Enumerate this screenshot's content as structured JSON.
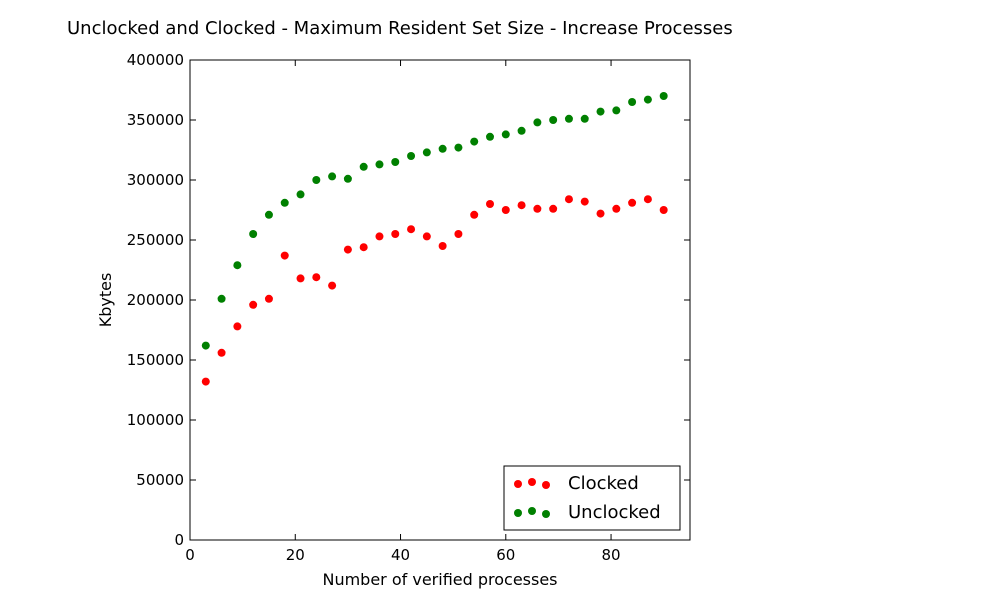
{
  "chart_data": {
    "type": "scatter",
    "title": "Unclocked and Clocked - Maximum Resident Set Size - Increase Processes",
    "xlabel": "Number of verified processes",
    "ylabel": "Kbytes",
    "xlim": [
      0,
      95
    ],
    "ylim": [
      0,
      400000
    ],
    "xticks": [
      0,
      20,
      40,
      60,
      80
    ],
    "yticks": [
      0,
      50000,
      100000,
      150000,
      200000,
      250000,
      300000,
      350000,
      400000
    ],
    "grid": false,
    "legend_position": "lower-right",
    "x": [
      3,
      6,
      9,
      12,
      15,
      18,
      21,
      24,
      27,
      30,
      33,
      36,
      39,
      42,
      45,
      48,
      51,
      54,
      57,
      60,
      63,
      66,
      69,
      72,
      75,
      78,
      81,
      84,
      87,
      90
    ],
    "series": [
      {
        "name": "Clocked",
        "color": "#ff0000",
        "values": [
          132000,
          156000,
          178000,
          196000,
          201000,
          237000,
          218000,
          219000,
          212000,
          242000,
          244000,
          253000,
          255000,
          259000,
          253000,
          245000,
          255000,
          271000,
          280000,
          275000,
          279000,
          276000,
          276000,
          284000,
          282000,
          272000,
          276000,
          281000,
          284000,
          275000
        ]
      },
      {
        "name": "Unclocked",
        "color": "#008000",
        "values": [
          162000,
          201000,
          229000,
          255000,
          271000,
          281000,
          288000,
          300000,
          303000,
          301000,
          311000,
          313000,
          315000,
          320000,
          323000,
          326000,
          327000,
          332000,
          336000,
          338000,
          341000,
          348000,
          350000,
          351000,
          351000,
          357000,
          358000,
          365000,
          367000,
          370000
        ]
      }
    ]
  }
}
